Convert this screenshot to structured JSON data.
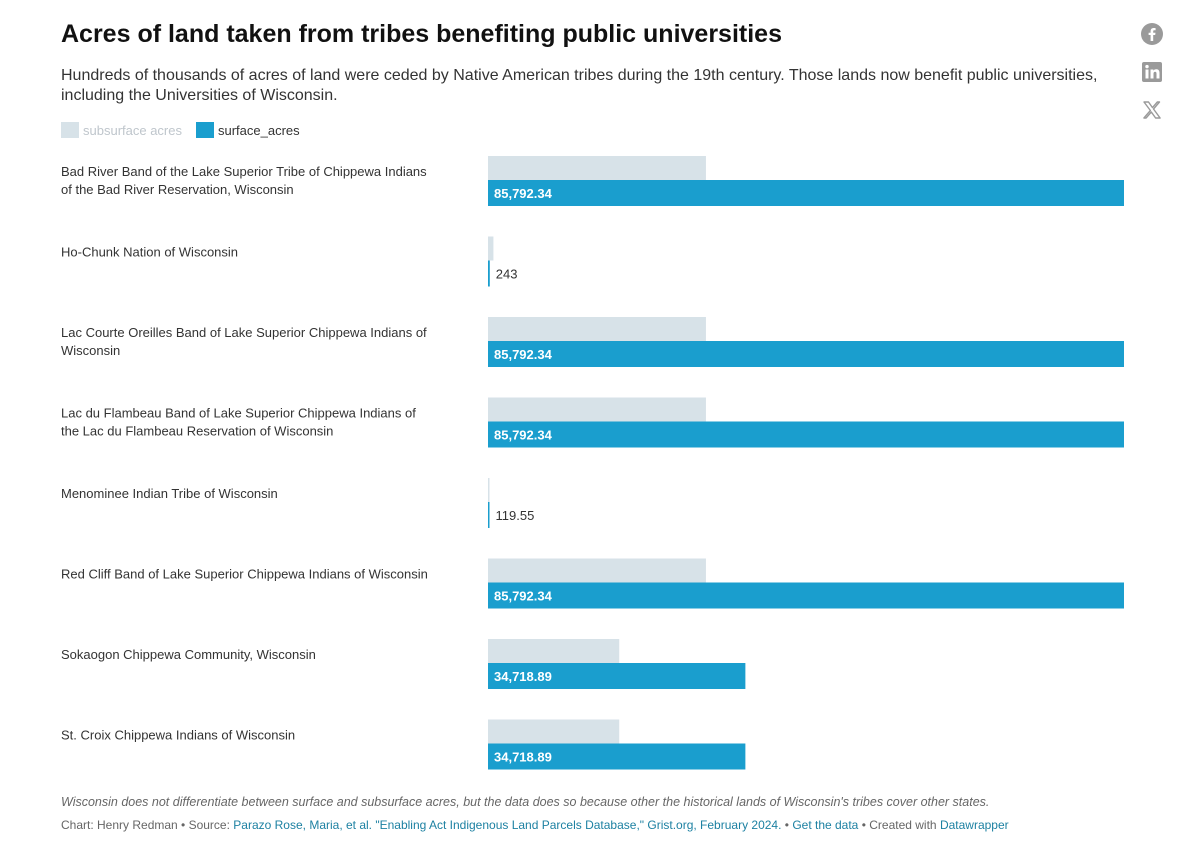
{
  "header": {
    "title": "Acres of land taken from tribes benefiting public universities",
    "subtitle": "Hundreds of thousands of acres of land were ceded by Native American tribes during the 19th century. Those lands now benefit public universities, including the Universities of Wisconsin."
  },
  "legend": {
    "subsurface_label": "subsurface acres",
    "surface_label": "surface_acres"
  },
  "share": {
    "facebook": "facebook-icon",
    "linkedin": "linkedin-icon",
    "x": "x-icon"
  },
  "colors": {
    "surface": "#1a9ece",
    "subsurface": "#d7e2e8",
    "link": "#1d81a2"
  },
  "chart_data": {
    "type": "bar",
    "orientation": "horizontal",
    "categories": [
      [
        "Bad River Band of the Lake Superior Tribe of Chippewa Indians",
        "of the Bad River Reservation, Wisconsin"
      ],
      [
        "Ho-Chunk Nation of Wisconsin"
      ],
      [
        "Lac Courte Oreilles Band of Lake Superior Chippewa Indians of",
        "Wisconsin"
      ],
      [
        "Lac du Flambeau Band of Lake Superior Chippewa Indians of",
        "the Lac du Flambeau Reservation of Wisconsin"
      ],
      [
        "Menominee Indian Tribe of Wisconsin"
      ],
      [
        "Red Cliff Band of Lake Superior Chippewa Indians of Wisconsin"
      ],
      [
        "Sokaogon Chippewa Community, Wisconsin"
      ],
      [
        "St. Croix Chippewa Indians of Wisconsin"
      ]
    ],
    "series": [
      {
        "name": "subsurface acres",
        "values": [
          29400,
          730,
          29400,
          29400,
          180,
          29400,
          17700,
          17700
        ]
      },
      {
        "name": "surface_acres",
        "values": [
          85792.34,
          243,
          85792.34,
          85792.34,
          119.55,
          85792.34,
          34718.89,
          34718.89
        ],
        "labels": [
          "85,792.34",
          "243",
          "85,792.34",
          "85,792.34",
          "119.55",
          "85,792.34",
          "34,718.89",
          "34,718.89"
        ]
      }
    ],
    "xlim": [
      0,
      85792.34
    ],
    "grid": false,
    "legend_position": "top-left"
  },
  "footer": {
    "note": "Wisconsin does not differentiate between surface and subsurface acres, but the data does so because other the historical lands of Wisconsin's tribes cover other states.",
    "chart_prefix": "Chart: Henry Redman • Source: ",
    "source_link": "Parazo Rose, Maria, et al. \"Enabling Act Indigenous Land Parcels Database,\" Grist.org, February 2024.",
    "sep1": " • ",
    "get_data": "Get the data",
    "sep2": " • Created with ",
    "tool_link": "Datawrapper"
  }
}
